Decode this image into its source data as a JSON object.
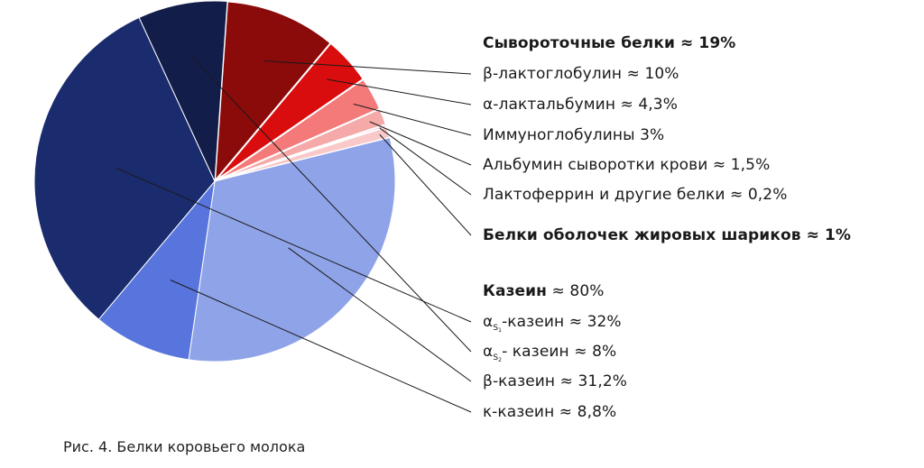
{
  "chart_data": {
    "type": "pie",
    "slices": [
      {
        "name": "β-лактоглобулин",
        "value": 10,
        "color": "#8b0a0a"
      },
      {
        "name": "α-лактальбумин",
        "value": 4.3,
        "color": "#d90d0d"
      },
      {
        "name": "Иммуноглобулины",
        "value": 3,
        "color": "#f47a7a"
      },
      {
        "name": "Альбумин сыворотки крови",
        "value": 1.5,
        "color": "#f6a9a9"
      },
      {
        "name": "Лактоферрин и другие белки",
        "value": 0.2,
        "color": "#e06bb5"
      },
      {
        "name": "Белки оболочек жировых шариков",
        "value": 1,
        "color": "#f9c9c9"
      },
      {
        "name": "β-казеин",
        "value": 31.2,
        "color": "#8fa3e8"
      },
      {
        "name": "κ-казеин",
        "value": 8.8,
        "color": "#5875dd"
      },
      {
        "name": "αS1-казеин",
        "value": 32,
        "color": "#1a2b6e"
      },
      {
        "name": "αS2-казеин",
        "value": 8,
        "color": "#131d4a"
      }
    ]
  },
  "labels": {
    "whey_header": "Сывороточные белки ≈ 19%",
    "beta_lacto": "β-лактоглобулин ≈ 10%",
    "alpha_lact": "α-лактальбумин ≈ 4,3%",
    "immuno": "Иммуноглобулины 3%",
    "albumin": "Альбумин сыворотки крови ≈ 1,5%",
    "lactoferrin": "Лактоферрин и другие белки ≈ 0,2%",
    "fat_globule": "Белки оболочек жировых шариков  ≈ 1%",
    "casein_word": "Казеин",
    "casein_value": " ≈ 80%",
    "as1_alpha": "α",
    "as1_sub": "S",
    "as1_subsub": "1",
    "as1_rest": "-казеин ≈ 32%",
    "as2_alpha": "α",
    "as2_sub": "S",
    "as2_subsub": "2",
    "as2_rest": "- казеин ≈ 8%",
    "beta_casein": "β-казеин ≈ 31,2%",
    "kappa_casein": "κ-казеин ≈ 8,8%"
  },
  "caption": "Рис. 4. Белки коровьего молока"
}
